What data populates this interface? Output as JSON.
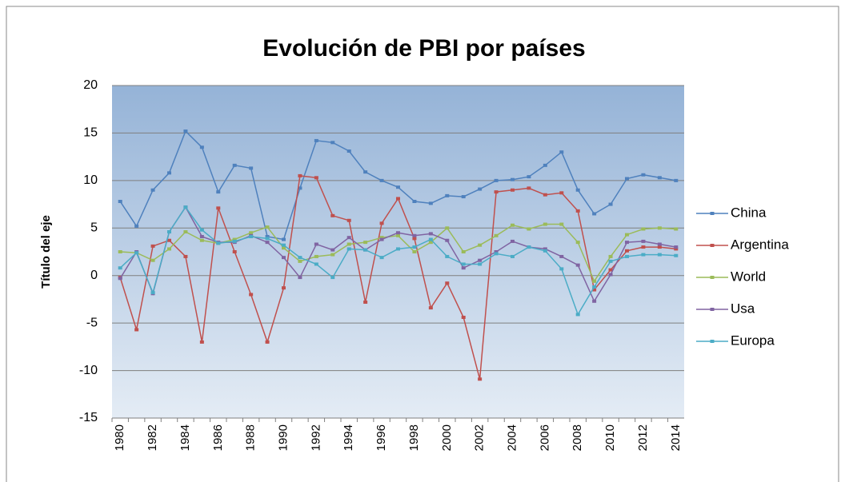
{
  "chart_data": {
    "type": "line",
    "title": "Evolución de PBI por países",
    "y_label": "Título del eje",
    "categories": [
      "1980",
      null,
      "1982",
      null,
      "1984",
      null,
      "1986",
      null,
      "1988",
      null,
      "1990",
      null,
      "1992",
      null,
      "1994",
      null,
      "1996",
      null,
      "1998",
      null,
      "2000",
      null,
      "2002",
      null,
      "2004",
      null,
      "2006",
      null,
      "2008",
      null,
      "2010",
      null,
      "2012",
      null,
      "2014"
    ],
    "ylim": [
      -15,
      20
    ],
    "yticks": [
      -15,
      -10,
      -5,
      0,
      5,
      10,
      15,
      20
    ],
    "grid": true,
    "legend": "right",
    "series": [
      {
        "name": "China",
        "color": "#4f81bd",
        "values": [
          7.8,
          5.2,
          9.0,
          10.8,
          15.2,
          13.5,
          8.8,
          11.6,
          11.3,
          4.1,
          3.8,
          9.2,
          14.2,
          14.0,
          13.1,
          10.9,
          10.0,
          9.3,
          7.8,
          7.6,
          8.4,
          8.3,
          9.1,
          10.0,
          10.1,
          10.4,
          11.6,
          13.0,
          9.0,
          6.5,
          7.5,
          10.2,
          10.6,
          10.3,
          10.0
        ]
      },
      {
        "name": "Argentina",
        "color": "#c0504d",
        "values": [
          -0.2,
          -5.7,
          3.1,
          3.7,
          2.0,
          -7.0,
          7.1,
          2.5,
          -2.0,
          -7.0,
          -1.3,
          10.5,
          10.3,
          6.3,
          5.8,
          -2.8,
          5.5,
          8.1,
          3.9,
          -3.4,
          -0.8,
          -4.4,
          -10.9,
          8.8,
          9.0,
          9.2,
          8.5,
          8.7,
          6.8,
          -1.5,
          0.6,
          2.6,
          3.0,
          3.0,
          2.8
        ]
      },
      {
        "name": "World",
        "color": "#9bbb59",
        "values": [
          2.5,
          2.4,
          1.6,
          2.8,
          4.6,
          3.7,
          3.4,
          3.8,
          4.5,
          5.1,
          2.9,
          1.5,
          2.0,
          2.2,
          3.3,
          3.5,
          4.0,
          4.2,
          2.5,
          3.5,
          5.0,
          2.5,
          3.2,
          4.2,
          5.3,
          4.9,
          5.4,
          5.4,
          3.5,
          -0.6,
          2.0,
          4.3,
          4.9,
          5.0,
          4.9
        ]
      },
      {
        "name": "Usa",
        "color": "#8064a2",
        "values": [
          -0.3,
          2.5,
          -1.9,
          4.6,
          7.2,
          4.1,
          3.5,
          3.5,
          4.2,
          3.5,
          1.9,
          -0.2,
          3.3,
          2.7,
          4.0,
          2.7,
          3.8,
          4.5,
          4.2,
          4.4,
          3.7,
          0.8,
          1.6,
          2.5,
          3.6,
          3.0,
          2.8,
          2.0,
          1.1,
          -2.7,
          0.1,
          3.5,
          3.6,
          3.3,
          3.0
        ]
      },
      {
        "name": "Europa",
        "color": "#4bacc6",
        "values": [
          0.8,
          2.4,
          -1.8,
          4.6,
          7.2,
          4.8,
          3.4,
          3.6,
          4.1,
          3.9,
          3.2,
          1.9,
          1.2,
          -0.2,
          2.8,
          2.7,
          1.9,
          2.8,
          3.0,
          3.8,
          2.0,
          1.2,
          1.2,
          2.3,
          2.0,
          3.0,
          2.6,
          0.7,
          -4.1,
          -1.2,
          1.5,
          2.0,
          2.2,
          2.2,
          2.1
        ]
      }
    ]
  }
}
